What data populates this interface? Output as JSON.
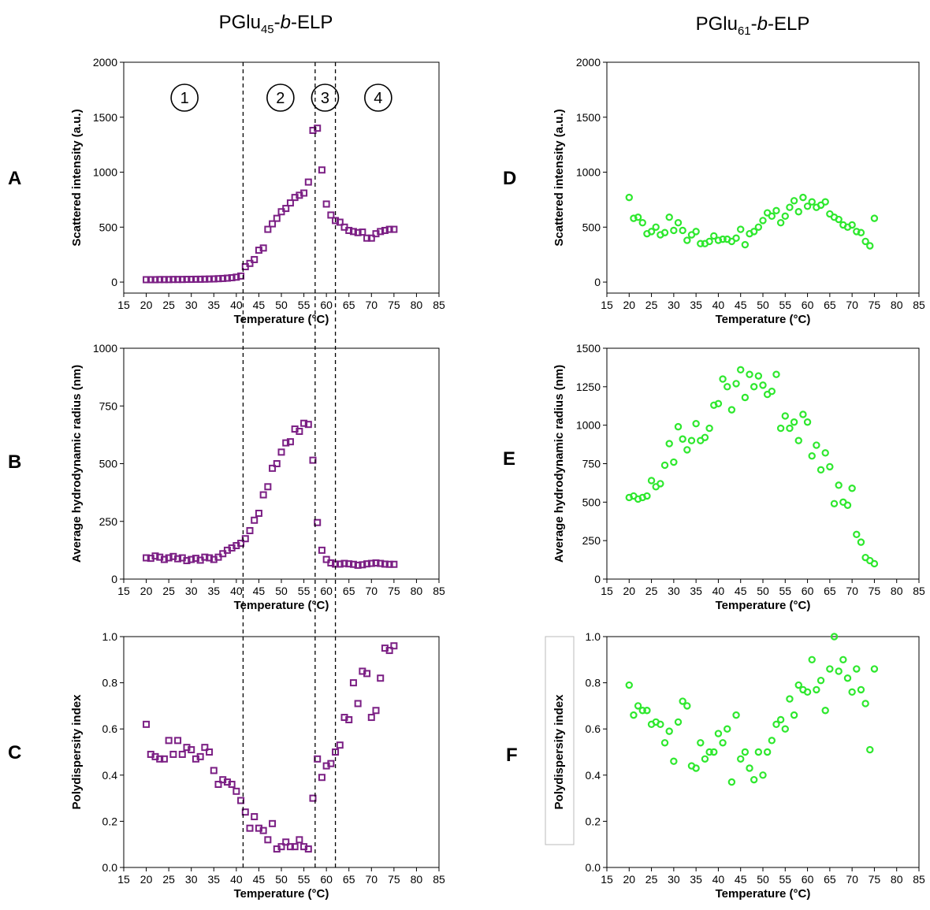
{
  "columns": [
    {
      "prefix": "PGlu",
      "sub": "45",
      "dash": "-",
      "italic": "b",
      "suffix": "-ELP"
    },
    {
      "prefix": "PGlu",
      "sub": "61",
      "dash": "-",
      "italic": "b",
      "suffix": "-ELP"
    }
  ],
  "regions": [
    "1",
    "2",
    "3",
    "4"
  ],
  "phase_boundaries_c": [
    41.5,
    57.5,
    62
  ],
  "colors": {
    "left_series": "#7b1f84",
    "right_series": "#2ee82e"
  },
  "chart_data": [
    {
      "panel": "A",
      "type": "scatter",
      "marker": "square",
      "title": "",
      "xlabel": "Temperature (°C)",
      "ylabel": "Scattered intensity (a.u.)",
      "xlim": [
        15,
        85
      ],
      "ylim": [
        -100,
        2000
      ],
      "x_ticks": [
        15,
        20,
        25,
        30,
        35,
        40,
        45,
        50,
        55,
        60,
        65,
        70,
        75,
        80,
        85
      ],
      "y_ticks": [
        0,
        500,
        1000,
        1500,
        2000
      ],
      "x": [
        20,
        21,
        22,
        23,
        24,
        25,
        26,
        27,
        28,
        29,
        30,
        31,
        32,
        33,
        34,
        35,
        36,
        37,
        38,
        39,
        40,
        41,
        42,
        43,
        44,
        45,
        46,
        47,
        48,
        49,
        50,
        51,
        52,
        53,
        54,
        55,
        56,
        57,
        58,
        59,
        60,
        61,
        62,
        63,
        64,
        65,
        66,
        67,
        68,
        69,
        70,
        71,
        72,
        73,
        74,
        75
      ],
      "y": [
        22,
        22,
        22,
        23,
        23,
        23,
        24,
        24,
        24,
        25,
        25,
        26,
        26,
        27,
        28,
        29,
        31,
        33,
        36,
        40,
        45,
        55,
        140,
        170,
        205,
        290,
        310,
        480,
        530,
        580,
        640,
        670,
        720,
        770,
        790,
        810,
        910,
        1380,
        1400,
        1020,
        710,
        610,
        560,
        545,
        500,
        470,
        460,
        450,
        455,
        400,
        400,
        440,
        460,
        470,
        480,
        480
      ]
    },
    {
      "panel": "B",
      "type": "scatter",
      "marker": "square",
      "title": "",
      "xlabel": "Temperature (°C)",
      "ylabel": "Average hydrodynamic radius (nm)",
      "xlim": [
        15,
        85
      ],
      "ylim": [
        0,
        1000
      ],
      "x_ticks": [
        15,
        20,
        25,
        30,
        35,
        40,
        45,
        50,
        55,
        60,
        65,
        70,
        75,
        80,
        85
      ],
      "y_ticks": [
        0,
        250,
        500,
        750,
        1000
      ],
      "x": [
        20,
        21,
        22,
        23,
        24,
        25,
        26,
        27,
        28,
        29,
        30,
        31,
        32,
        33,
        34,
        35,
        36,
        37,
        38,
        39,
        40,
        41,
        42,
        43,
        44,
        45,
        46,
        47,
        48,
        49,
        50,
        51,
        52,
        53,
        54,
        55,
        56,
        57,
        58,
        59,
        60,
        61,
        62,
        63,
        64,
        65,
        66,
        67,
        68,
        69,
        70,
        71,
        72,
        73,
        74,
        75
      ],
      "y": [
        92,
        90,
        100,
        95,
        85,
        92,
        98,
        88,
        92,
        80,
        85,
        90,
        82,
        95,
        92,
        85,
        95,
        110,
        125,
        135,
        145,
        155,
        175,
        210,
        255,
        285,
        365,
        400,
        480,
        500,
        550,
        590,
        595,
        650,
        640,
        675,
        670,
        515,
        245,
        125,
        85,
        70,
        65,
        65,
        68,
        66,
        64,
        60,
        62,
        66,
        68,
        70,
        68,
        65,
        64,
        64
      ]
    },
    {
      "panel": "C",
      "type": "scatter",
      "marker": "square",
      "title": "",
      "xlabel": "Temperature (°C)",
      "ylabel": "Polydispersity index",
      "xlim": [
        15,
        85
      ],
      "ylim": [
        0,
        1.0
      ],
      "x_ticks": [
        15,
        20,
        25,
        30,
        35,
        40,
        45,
        50,
        55,
        60,
        65,
        70,
        75,
        80,
        85
      ],
      "y_ticks": [
        0.0,
        0.2,
        0.4,
        0.6,
        0.8,
        1.0
      ],
      "x": [
        20,
        21,
        22,
        23,
        24,
        25,
        26,
        27,
        28,
        29,
        30,
        31,
        32,
        33,
        34,
        35,
        36,
        37,
        38,
        39,
        40,
        41,
        42,
        43,
        44,
        45,
        46,
        47,
        48,
        49,
        50,
        51,
        52,
        53,
        54,
        55,
        56,
        57,
        58,
        59,
        60,
        61,
        62,
        63,
        64,
        65,
        66,
        67,
        68,
        69,
        70,
        71,
        72,
        73,
        74,
        75
      ],
      "y": [
        0.62,
        0.49,
        0.48,
        0.47,
        0.47,
        0.55,
        0.49,
        0.55,
        0.49,
        0.52,
        0.51,
        0.47,
        0.48,
        0.52,
        0.5,
        0.42,
        0.36,
        0.38,
        0.37,
        0.36,
        0.33,
        0.29,
        0.24,
        0.17,
        0.22,
        0.17,
        0.16,
        0.12,
        0.19,
        0.08,
        0.09,
        0.11,
        0.09,
        0.09,
        0.12,
        0.09,
        0.08,
        0.3,
        0.47,
        0.39,
        0.44,
        0.45,
        0.5,
        0.53,
        0.65,
        0.64,
        0.8,
        0.71,
        0.85,
        0.84,
        0.65,
        0.68,
        0.82,
        0.95,
        0.94,
        0.96
      ]
    },
    {
      "panel": "D",
      "type": "scatter",
      "marker": "circle",
      "title": "",
      "xlabel": "Temperature (°C)",
      "ylabel": "Scattered intensity (a.u.)",
      "xlim": [
        15,
        85
      ],
      "ylim": [
        -100,
        2000
      ],
      "x_ticks": [
        15,
        20,
        25,
        30,
        35,
        40,
        45,
        50,
        55,
        60,
        65,
        70,
        75,
        80,
        85
      ],
      "y_ticks": [
        0,
        500,
        1000,
        1500,
        2000
      ],
      "x": [
        20,
        21,
        22,
        23,
        24,
        25,
        26,
        27,
        28,
        29,
        30,
        31,
        32,
        33,
        34,
        35,
        36,
        37,
        38,
        39,
        40,
        41,
        42,
        43,
        44,
        45,
        46,
        47,
        48,
        49,
        50,
        51,
        52,
        53,
        54,
        55,
        56,
        57,
        58,
        59,
        60,
        61,
        62,
        63,
        64,
        65,
        66,
        67,
        68,
        69,
        70,
        71,
        72,
        73,
        74,
        75
      ],
      "y": [
        770,
        580,
        590,
        540,
        440,
        460,
        500,
        430,
        450,
        590,
        470,
        540,
        470,
        380,
        430,
        460,
        350,
        350,
        370,
        420,
        380,
        390,
        390,
        370,
        400,
        480,
        340,
        440,
        460,
        500,
        560,
        630,
        600,
        650,
        540,
        600,
        680,
        740,
        640,
        770,
        690,
        730,
        680,
        700,
        730,
        620,
        590,
        570,
        520,
        500,
        520,
        460,
        450,
        370,
        330,
        580
      ]
    },
    {
      "panel": "E",
      "type": "scatter",
      "marker": "circle",
      "title": "",
      "xlabel": "Temperature (°C)",
      "ylabel": "Average hydrodynamic radius (nm)",
      "xlim": [
        15,
        85
      ],
      "ylim": [
        0,
        1500
      ],
      "x_ticks": [
        15,
        20,
        25,
        30,
        35,
        40,
        45,
        50,
        55,
        60,
        65,
        70,
        75,
        80,
        85
      ],
      "y_ticks": [
        0,
        250,
        500,
        750,
        1000,
        1250,
        1500
      ],
      "x": [
        20,
        21,
        22,
        23,
        24,
        25,
        26,
        27,
        28,
        29,
        30,
        31,
        32,
        33,
        34,
        35,
        36,
        37,
        38,
        39,
        40,
        41,
        42,
        43,
        44,
        45,
        46,
        47,
        48,
        49,
        50,
        51,
        52,
        53,
        54,
        55,
        56,
        57,
        58,
        59,
        60,
        61,
        62,
        63,
        64,
        65,
        66,
        67,
        68,
        69,
        70,
        71,
        72,
        73,
        74,
        75
      ],
      "y": [
        530,
        540,
        520,
        530,
        540,
        640,
        600,
        620,
        740,
        880,
        760,
        990,
        910,
        840,
        900,
        1010,
        900,
        920,
        980,
        1130,
        1140,
        1300,
        1250,
        1100,
        1270,
        1360,
        1180,
        1330,
        1250,
        1320,
        1260,
        1200,
        1220,
        1330,
        980,
        1060,
        980,
        1020,
        900,
        1070,
        1020,
        800,
        870,
        710,
        820,
        730,
        490,
        610,
        500,
        480,
        590,
        290,
        240,
        140,
        120,
        100
      ]
    },
    {
      "panel": "F",
      "type": "scatter",
      "marker": "circle",
      "title": "",
      "xlabel": "Temperature (°C)",
      "ylabel": "Polydispersity index",
      "xlim": [
        15,
        85
      ],
      "ylim": [
        0,
        1.0
      ],
      "x_ticks": [
        15,
        20,
        25,
        30,
        35,
        40,
        45,
        50,
        55,
        60,
        65,
        70,
        75,
        80,
        85
      ],
      "y_ticks": [
        0.0,
        0.2,
        0.4,
        0.6,
        0.8,
        1.0
      ],
      "x": [
        20,
        21,
        22,
        23,
        24,
        25,
        26,
        27,
        28,
        29,
        30,
        31,
        32,
        33,
        34,
        35,
        36,
        37,
        38,
        39,
        40,
        41,
        42,
        43,
        44,
        45,
        46,
        47,
        48,
        49,
        50,
        51,
        52,
        53,
        54,
        55,
        56,
        57,
        58,
        59,
        60,
        61,
        62,
        63,
        64,
        65,
        66,
        67,
        68,
        69,
        70,
        71,
        72,
        73,
        74,
        75
      ],
      "y": [
        0.79,
        0.66,
        0.7,
        0.68,
        0.68,
        0.62,
        0.63,
        0.62,
        0.54,
        0.59,
        0.46,
        0.63,
        0.72,
        0.7,
        0.44,
        0.43,
        0.54,
        0.47,
        0.5,
        0.5,
        0.58,
        0.54,
        0.6,
        0.37,
        0.66,
        0.47,
        0.5,
        0.43,
        0.38,
        0.5,
        0.4,
        0.5,
        0.55,
        0.62,
        0.64,
        0.6,
        0.73,
        0.66,
        0.79,
        0.77,
        0.76,
        0.9,
        0.77,
        0.81,
        0.68,
        0.86,
        1.0,
        0.85,
        0.9,
        0.82,
        0.76,
        0.86,
        0.77,
        0.71,
        0.51,
        0.86
      ]
    }
  ]
}
